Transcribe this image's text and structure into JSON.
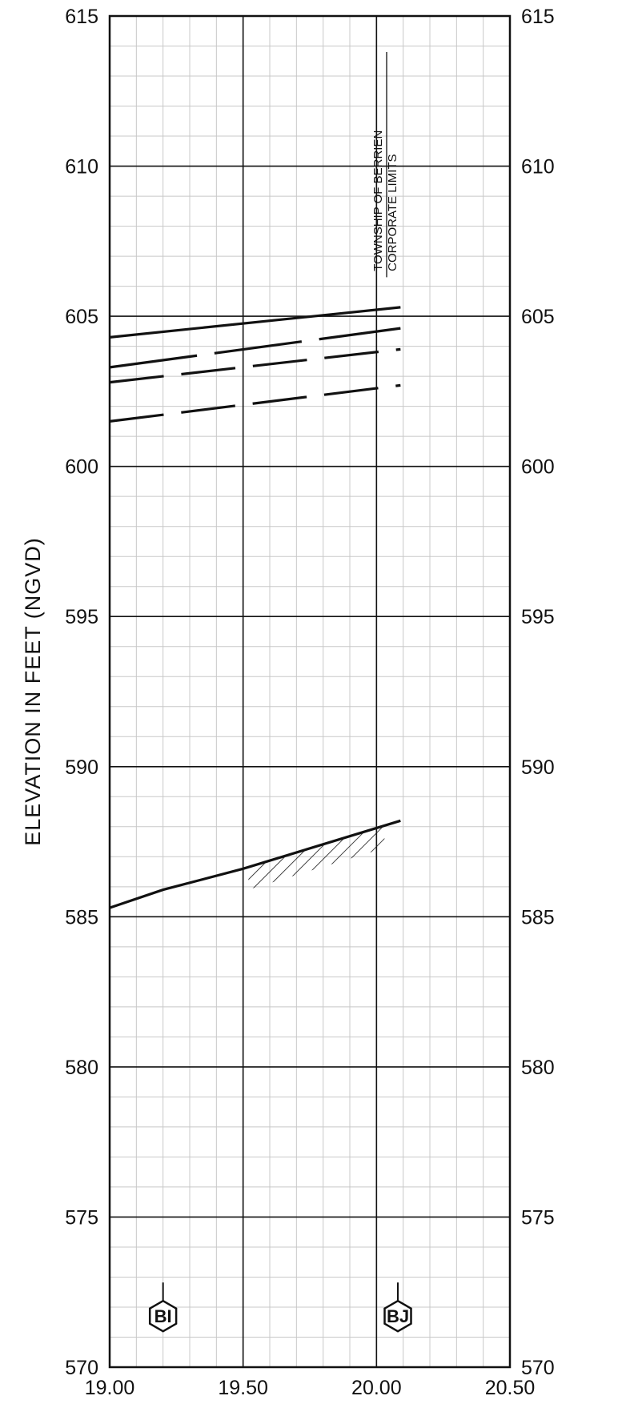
{
  "chart_data": {
    "type": "line",
    "ylabel": "ELEVATION IN FEET (NGVD)",
    "xlabel": "",
    "xlim": [
      19.0,
      20.5
    ],
    "ylim": [
      570,
      615
    ],
    "x_ticks": [
      "19.00",
      "19.50",
      "20.00",
      "20.50"
    ],
    "y_ticks": [
      "570",
      "575",
      "580",
      "585",
      "590",
      "595",
      "600",
      "605",
      "610",
      "615"
    ],
    "grid": true,
    "series": [
      {
        "style": "solid",
        "x": [
          19.0,
          20.09
        ],
        "y": [
          604.3,
          605.3
        ]
      },
      {
        "style": "long-dash",
        "x": [
          19.0,
          20.09
        ],
        "y": [
          603.3,
          604.6
        ]
      },
      {
        "style": "dash",
        "x": [
          19.0,
          20.09
        ],
        "y": [
          602.8,
          603.9
        ]
      },
      {
        "style": "dash",
        "x": [
          19.0,
          20.09
        ],
        "y": [
          601.5,
          602.7
        ]
      },
      {
        "style": "streambed",
        "x": [
          19.0,
          19.2,
          19.5,
          20.09
        ],
        "y": [
          585.3,
          585.9,
          586.6,
          588.2
        ]
      }
    ],
    "annotations": [
      {
        "line1": "TOWNSHIP OF BERRIEN",
        "line2": "CORPORATE LIMITS",
        "x": 20.05
      }
    ],
    "cross_sections": [
      {
        "label": "BI",
        "x": 19.2
      },
      {
        "label": "BJ",
        "x": 20.08
      }
    ]
  }
}
